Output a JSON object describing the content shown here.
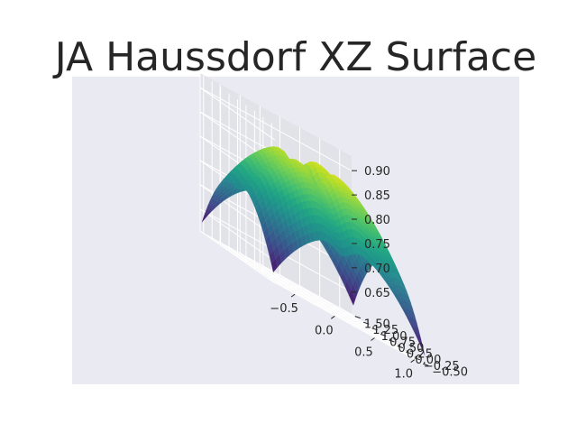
{
  "chart_data": {
    "type": "surface",
    "title": "JA Haussdorf XZ Surface",
    "colormap": "viridis",
    "background": "#eaeaf2",
    "grid": true,
    "x": {
      "label": "",
      "range": [
        -0.75,
        1.15
      ],
      "ticks": [
        -0.5,
        0.0,
        0.5,
        1.0
      ],
      "tick_labels": [
        "−0.5",
        "0.0",
        "0.5",
        "1.0"
      ]
    },
    "y": {
      "label": "",
      "range": [
        -0.6,
        1.6
      ],
      "ticks": [
        -0.5,
        -0.25,
        0.0,
        0.25,
        0.5,
        0.75,
        1.0,
        1.25,
        1.5
      ],
      "tick_labels": [
        "−0.50",
        "−0.25",
        "0.00",
        "0.25",
        "0.50",
        "0.75",
        "1.00",
        "1.25",
        "1.50"
      ]
    },
    "z": {
      "label": "",
      "range": [
        0.605,
        0.93
      ],
      "ticks": [
        0.65,
        0.7,
        0.75,
        0.8,
        0.85,
        0.9
      ],
      "tick_labels": [
        "0.65",
        "0.70",
        "0.75",
        "0.80",
        "0.85",
        "0.90"
      ]
    },
    "surface": {
      "x_domain": [
        -0.75,
        1.15
      ],
      "y_domain": [
        -0.55,
        1.55
      ],
      "z_max": 0.905,
      "z_min": 0.612,
      "peak_at": [
        0.2,
        0.5
      ]
    }
  }
}
